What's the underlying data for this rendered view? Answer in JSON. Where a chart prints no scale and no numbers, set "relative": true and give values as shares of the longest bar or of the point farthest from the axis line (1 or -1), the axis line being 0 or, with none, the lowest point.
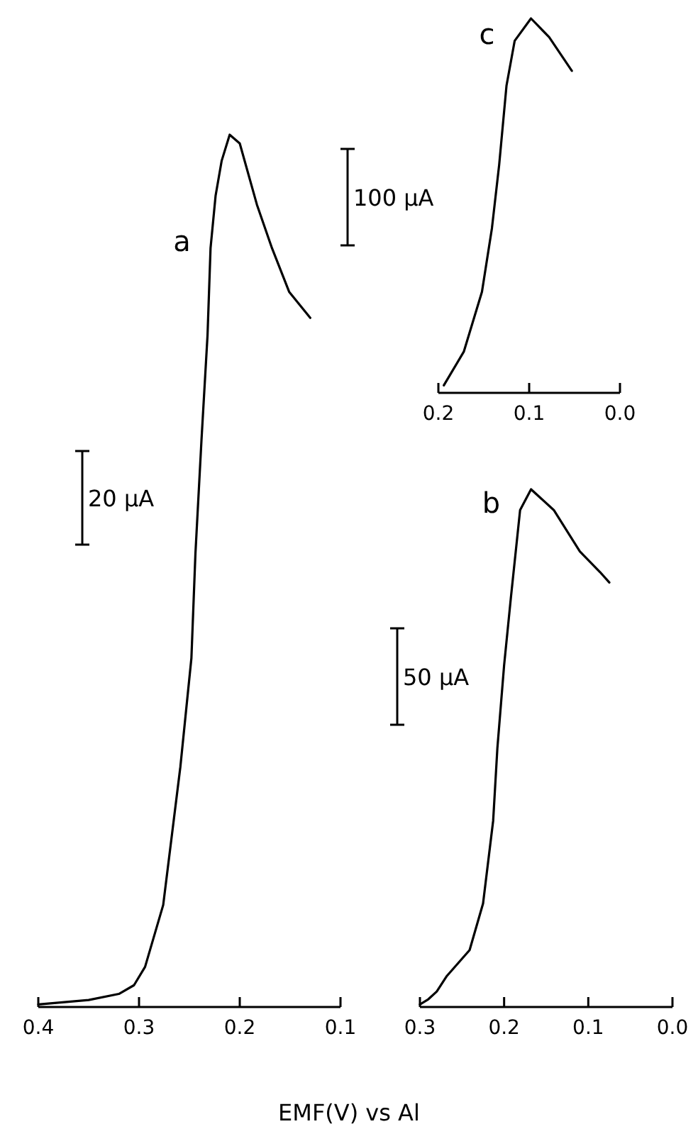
{
  "chart_data": [
    {
      "type": "line",
      "relative": true,
      "xlabel": "EMF(V) vs Al",
      "xlim": [
        0.4,
        0.1
      ],
      "xticks": [
        0.4,
        0.3,
        0.2,
        0.1
      ],
      "annotations": [
        "20 μA"
      ],
      "series": [
        {
          "name": "a",
          "color": "#000000",
          "x": [
            0.4,
            0.35,
            0.32,
            0.305,
            0.294,
            0.276,
            0.259,
            0.248,
            0.244,
            0.238,
            0.232,
            0.229,
            0.224,
            0.218,
            0.21,
            0.2,
            0.183,
            0.168,
            0.151,
            0.13
          ],
          "values": [
            0.003,
            0.008,
            0.015,
            0.025,
            0.046,
            0.117,
            0.275,
            0.4,
            0.52,
            0.65,
            0.77,
            0.87,
            0.93,
            0.97,
            1,
            0.99,
            0.92,
            0.87,
            0.82,
            0.79
          ]
        }
      ]
    },
    {
      "type": "line",
      "relative": true,
      "xlim": [
        0.2,
        0.0
      ],
      "xticks": [
        0.2,
        0.1,
        {
          "value": 0,
          "label": "0.0"
        }
      ],
      "annotations": [
        "100 μA"
      ],
      "series": [
        {
          "name": "c",
          "color": "#000000",
          "x": [
            0.194,
            0.172,
            0.152,
            0.141,
            0.133,
            0.125,
            0.116,
            0.098,
            0.078,
            0.053
          ],
          "values": [
            0.02,
            0.11,
            0.27,
            0.44,
            0.61,
            0.82,
            0.94,
            1,
            0.95,
            0.86
          ]
        }
      ]
    },
    {
      "type": "line",
      "relative": true,
      "xlim": [
        0.3,
        0.0
      ],
      "xticks": [
        0.3,
        0.2,
        0.1,
        {
          "value": 0,
          "label": "0.0"
        }
      ],
      "annotations": [
        "50 μA"
      ],
      "series": [
        {
          "name": "b",
          "color": "#000000",
          "x": [
            0.3,
            0.29,
            0.28,
            0.268,
            0.241,
            0.225,
            0.213,
            0.208,
            0.2,
            0.192,
            0.181,
            0.168,
            0.141,
            0.11,
            0.086,
            0.075
          ],
          "values": [
            0.005,
            0.015,
            0.03,
            0.06,
            0.11,
            0.2,
            0.36,
            0.5,
            0.66,
            0.79,
            0.96,
            1,
            0.96,
            0.88,
            0.84,
            0.82
          ]
        }
      ]
    }
  ]
}
